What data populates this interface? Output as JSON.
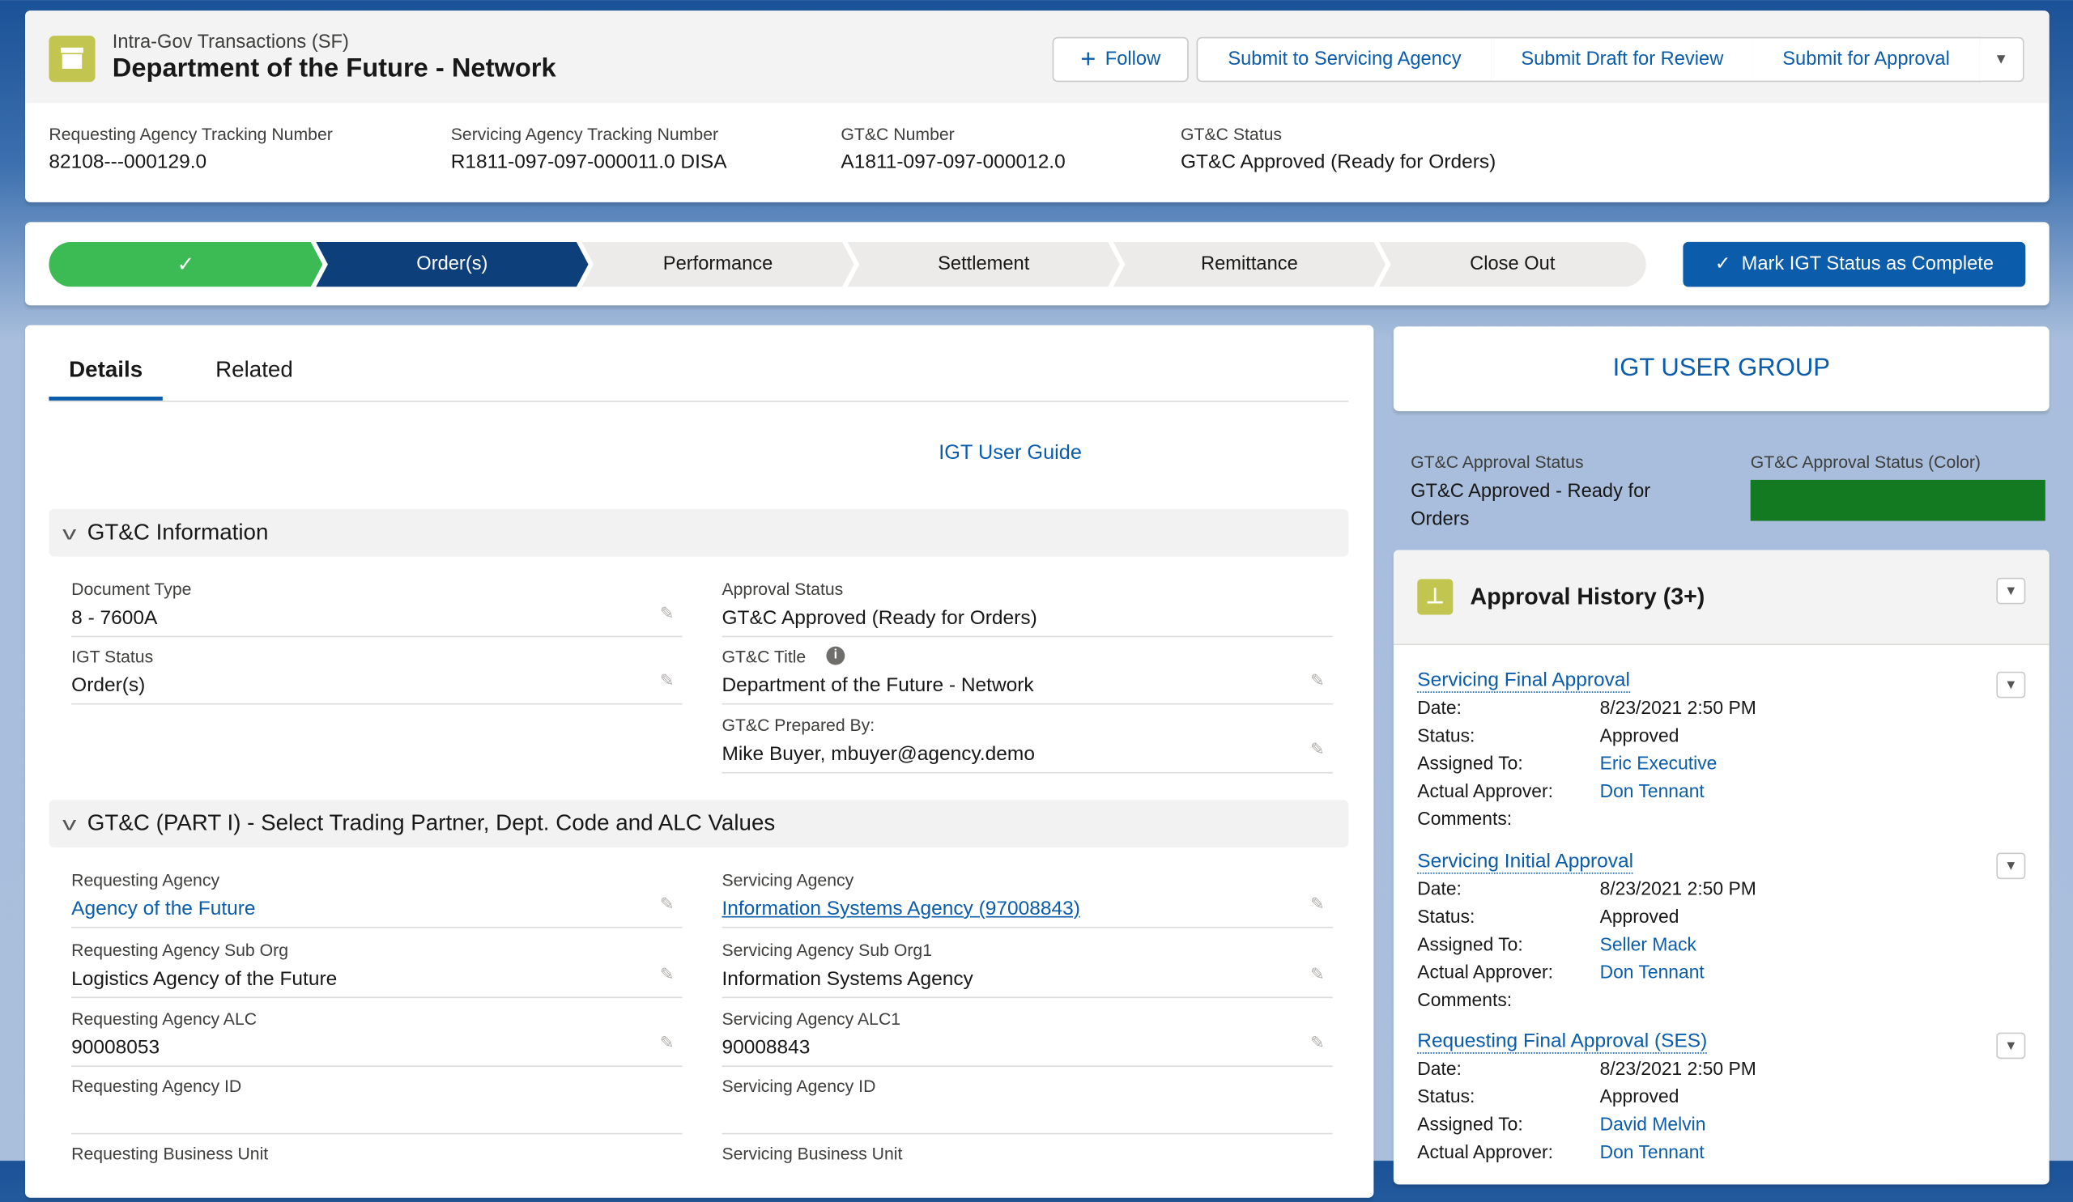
{
  "header": {
    "object_type": "Intra-Gov Transactions (SF)",
    "title": "Department of the Future - Network",
    "buttons": {
      "follow": "Follow",
      "submit_servicing": "Submit to Servicing Agency",
      "submit_draft": "Submit Draft for Review",
      "submit_approval": "Submit for Approval"
    },
    "fields": [
      {
        "label": "Requesting Agency Tracking Number",
        "value": "82108---000129.0"
      },
      {
        "label": "Servicing Agency Tracking Number",
        "value": "R1811-097-097-000011.0 DISA"
      },
      {
        "label": "GT&C Number",
        "value": "A1811-097-097-000012.0"
      },
      {
        "label": "GT&C Status",
        "value": "GT&C Approved (Ready for Orders)"
      }
    ]
  },
  "path": {
    "steps": [
      "",
      "Order(s)",
      "Performance",
      "Settlement",
      "Remittance",
      "Close Out"
    ],
    "current": "Order(s)",
    "mark_complete": "Mark IGT Status as Complete",
    "colors": {
      "complete": "#3cba54",
      "current": "#0d3f7a"
    }
  },
  "tabs": [
    "Details",
    "Related"
  ],
  "user_guide": "IGT User Guide",
  "sections": [
    {
      "title": "GT&C Information",
      "left": [
        {
          "label": "Document Type",
          "value": "8 - 7600A"
        },
        {
          "label": "IGT Status",
          "value": "Order(s)"
        }
      ],
      "right": [
        {
          "label": "Approval Status",
          "value": "GT&C Approved (Ready for Orders)"
        },
        {
          "label": "GT&C Title",
          "value": "Department of the Future - Network"
        },
        {
          "label": "GT&C Prepared By:",
          "value": "Mike Buyer, mbuyer@agency.demo"
        }
      ]
    },
    {
      "title": "GT&C (PART I) - Select Trading Partner, Dept. Code and ALC Values",
      "left": [
        {
          "label": "Requesting Agency",
          "value": "Agency of the Future"
        },
        {
          "label": "Requesting Agency Sub Org",
          "value": "Logistics Agency of the Future"
        },
        {
          "label": "Requesting Agency ALC",
          "value": "90008053"
        },
        {
          "label": "Requesting Agency ID",
          "value": ""
        },
        {
          "label": "Requesting Business Unit",
          "value": ""
        }
      ],
      "right": [
        {
          "label": "Servicing Agency",
          "value": "Information Systems Agency (97008843)"
        },
        {
          "label": "Servicing Agency Sub Org1",
          "value": "Information Systems Agency"
        },
        {
          "label": "Servicing Agency ALC1",
          "value": "90008843"
        },
        {
          "label": "Servicing Agency ID",
          "value": ""
        },
        {
          "label": "Servicing Business Unit",
          "value": ""
        }
      ]
    }
  ],
  "sidebar": {
    "user_group": "IGT USER GROUP",
    "approval_status_label": "GT&C Approval Status",
    "approval_status_value": "GT&C Approved - Ready for Orders",
    "color_label": "GT&C Approval Status (Color)",
    "status_color": "#137a22",
    "history_title": "Approval History (3+)",
    "keys": {
      "date": "Date:",
      "status": "Status:",
      "assigned": "Assigned To:",
      "actual": "Actual Approver:",
      "comments": "Comments:"
    },
    "history": [
      {
        "title": "Servicing Final Approval",
        "date": "8/23/2021 2:50 PM",
        "status": "Approved",
        "assigned": "Eric Executive",
        "actual": "Don Tennant"
      },
      {
        "title": "Servicing Initial Approval",
        "date": "8/23/2021 2:50 PM",
        "status": "Approved",
        "assigned": "Seller Mack",
        "actual": "Don Tennant"
      },
      {
        "title": "Requesting Final Approval (SES)",
        "date": "8/23/2021 2:50 PM",
        "status": "Approved",
        "assigned": "David Melvin",
        "actual": "Don Tennant"
      }
    ]
  }
}
